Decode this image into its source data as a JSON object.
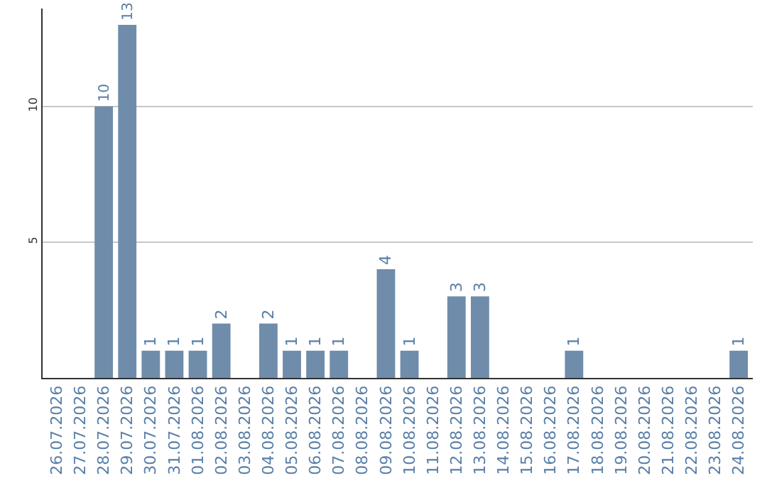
{
  "chart_data": {
    "type": "bar",
    "categories": [
      "26.07.2026",
      "27.07.2026",
      "28.07.2026",
      "29.07.2026",
      "30.07.2026",
      "31.07.2026",
      "01.08.2026",
      "02.08.2026",
      "03.08.2026",
      "04.08.2026",
      "05.08.2026",
      "06.08.2026",
      "07.08.2026",
      "08.08.2026",
      "09.08.2026",
      "10.08.2026",
      "11.08.2026",
      "12.08.2026",
      "13.08.2026",
      "14.08.2026",
      "15.08.2026",
      "16.08.2026",
      "17.08.2026",
      "18.08.2026",
      "19.08.2026",
      "20.08.2026",
      "21.08.2026",
      "22.08.2026",
      "23.08.2026",
      "24.08.2026"
    ],
    "values": [
      0,
      0,
      10,
      13,
      1,
      1,
      1,
      2,
      0,
      2,
      1,
      1,
      1,
      0,
      4,
      1,
      0,
      3,
      3,
      0,
      0,
      0,
      1,
      0,
      0,
      0,
      0,
      0,
      0,
      1
    ],
    "value_labels": [
      null,
      null,
      "10",
      "13",
      "1",
      "1",
      "1",
      "2",
      null,
      "2",
      "1",
      "1",
      "1",
      null,
      "4",
      "1",
      null,
      "3",
      "3",
      null,
      null,
      null,
      "1",
      null,
      null,
      null,
      null,
      null,
      null,
      "1"
    ],
    "color": "#6f8cab",
    "ylim": [
      0,
      13.6
    ],
    "yticks": [
      5,
      10
    ],
    "grid": "y",
    "legend": false
  }
}
